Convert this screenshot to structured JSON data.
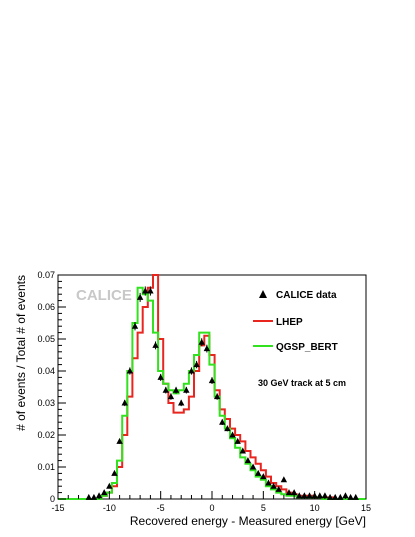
{
  "chart_data": {
    "type": "line",
    "xlabel": "Recovered  energy - Measured  energy [GeV]",
    "ylabel": "# of events / Total # of events",
    "xlim": [
      -15,
      15
    ],
    "ylim": [
      0,
      0.07
    ],
    "x_ticks": [
      "-15",
      "-10",
      "-5",
      "0",
      "5",
      "10",
      "15"
    ],
    "x_tick_values": [
      -15,
      -10,
      -5,
      0,
      5,
      10,
      15
    ],
    "y_ticks": [
      "0",
      "0.01",
      "0.02",
      "0.03",
      "0.04",
      "0.05",
      "0.06",
      "0.07"
    ],
    "y_tick_values": [
      0,
      0.01,
      0.02,
      0.03,
      0.04,
      0.05,
      0.06,
      0.07
    ],
    "watermark": "CALICE",
    "annotation": "30 GeV track at 5 cm",
    "legend_position": "top-right",
    "x": [
      -12.0,
      -11.5,
      -11.0,
      -10.5,
      -10.0,
      -9.5,
      -9.0,
      -8.5,
      -8.0,
      -7.5,
      -7.0,
      -6.5,
      -6.0,
      -5.5,
      -5.0,
      -4.5,
      -4.0,
      -3.5,
      -3.0,
      -2.5,
      -2.0,
      -1.5,
      -1.0,
      -0.5,
      0.0,
      0.5,
      1.0,
      1.5,
      2.0,
      2.5,
      3.0,
      3.5,
      4.0,
      4.5,
      5.0,
      5.5,
      6.0,
      6.5,
      7.0,
      7.5,
      8.0,
      8.5,
      9.0,
      9.5,
      10.0,
      10.5,
      11.0,
      11.5,
      12.0,
      12.5,
      13.0,
      13.5,
      14.0
    ],
    "series": [
      {
        "name": "CALICE data",
        "style": "markers",
        "color": "#000000",
        "values": [
          0.0005,
          0.0005,
          0.001,
          0.002,
          0.004,
          0.008,
          0.018,
          0.03,
          0.04,
          0.054,
          0.063,
          0.065,
          0.065,
          0.048,
          0.038,
          0.034,
          0.032,
          0.034,
          0.03,
          0.034,
          0.04,
          0.042,
          0.049,
          0.047,
          0.037,
          0.032,
          0.024,
          0.022,
          0.02,
          0.018,
          0.015,
          0.012,
          0.01,
          0.008,
          0.007,
          0.005,
          0.004,
          0.003,
          0.006,
          0.002,
          0.002,
          0.001,
          0.001,
          0.001,
          0.001,
          0.001,
          0.001,
          0.0005,
          0.0005,
          0.0005,
          0.001,
          0.0005,
          0.0005
        ]
      },
      {
        "name": "LHEP",
        "style": "step",
        "color": "#e8251f",
        "values": [
          0.0,
          0.0,
          0.0,
          0.001,
          0.002,
          0.004,
          0.01,
          0.02,
          0.032,
          0.044,
          0.052,
          0.06,
          0.066,
          0.07,
          0.05,
          0.036,
          0.03,
          0.027,
          0.027,
          0.028,
          0.032,
          0.04,
          0.048,
          0.051,
          0.045,
          0.034,
          0.028,
          0.025,
          0.022,
          0.02,
          0.018,
          0.015,
          0.013,
          0.011,
          0.009,
          0.007,
          0.005,
          0.004,
          0.003,
          0.002,
          0.0015,
          0.001,
          0.001,
          0.001,
          0.0005,
          0.0005,
          0.0005,
          0.0005,
          0.0,
          0.0,
          0.0,
          0.0,
          0.0
        ]
      },
      {
        "name": "QGSP_BERT",
        "style": "step",
        "color": "#33e21f",
        "values": [
          0.0,
          0.0,
          0.0,
          0.001,
          0.002,
          0.005,
          0.012,
          0.026,
          0.04,
          0.055,
          0.066,
          0.064,
          0.062,
          0.052,
          0.04,
          0.036,
          0.034,
          0.033,
          0.034,
          0.036,
          0.04,
          0.045,
          0.052,
          0.052,
          0.042,
          0.032,
          0.026,
          0.022,
          0.019,
          0.016,
          0.013,
          0.011,
          0.009,
          0.007,
          0.006,
          0.004,
          0.003,
          0.002,
          0.0015,
          0.001,
          0.001,
          0.0005,
          0.0005,
          0.0005,
          0.0005,
          0.0005,
          0.0,
          0.0,
          0.0,
          0.0,
          0.0,
          0.0,
          0.0
        ]
      }
    ]
  }
}
